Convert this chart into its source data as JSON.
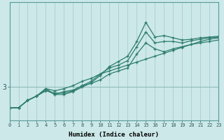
{
  "xlabel": "Humidex (Indice chaleur)",
  "ylabel": "",
  "background_color": "#cce8e8",
  "grid_color": "#aacece",
  "line_color": "#2e7d6e",
  "x_min": 0,
  "x_max": 23,
  "y_min": 2.55,
  "y_max": 4.15,
  "yticks": [
    3
  ],
  "xticks": [
    0,
    1,
    2,
    3,
    4,
    5,
    6,
    7,
    8,
    9,
    10,
    11,
    12,
    13,
    14,
    15,
    16,
    17,
    18,
    19,
    20,
    21,
    22,
    23
  ],
  "series": [
    {
      "x": [
        0,
        1,
        2,
        3,
        4,
        5,
        6,
        7,
        8,
        9,
        10,
        11,
        12,
        13,
        14,
        15,
        16,
        17,
        18,
        19,
        20,
        21,
        22,
        23
      ],
      "y": [
        2.72,
        2.72,
        2.82,
        2.88,
        2.98,
        2.95,
        2.98,
        3.02,
        3.08,
        3.12,
        3.18,
        3.22,
        3.26,
        3.3,
        3.34,
        3.38,
        3.42,
        3.46,
        3.5,
        3.54,
        3.58,
        3.62,
        3.65,
        3.67
      ]
    },
    {
      "x": [
        0,
        1,
        2,
        3,
        4,
        5,
        6,
        7,
        8,
        9,
        10,
        11,
        12,
        13,
        14,
        15,
        16,
        17,
        18,
        19,
        20,
        21,
        22,
        23
      ],
      "y": [
        2.72,
        2.72,
        2.82,
        2.88,
        2.95,
        2.92,
        2.92,
        2.95,
        3.02,
        3.05,
        3.1,
        3.18,
        3.22,
        3.26,
        3.45,
        3.6,
        3.52,
        3.48,
        3.52,
        3.55,
        3.58,
        3.6,
        3.62,
        3.64
      ]
    },
    {
      "x": [
        0,
        1,
        2,
        3,
        4,
        5,
        6,
        7,
        8,
        9,
        10,
        11,
        12,
        13,
        14,
        15,
        16,
        17,
        18,
        19,
        20,
        21,
        22,
        23
      ],
      "y": [
        2.72,
        2.72,
        2.82,
        2.88,
        2.96,
        2.9,
        2.94,
        2.96,
        3.02,
        3.08,
        3.18,
        3.26,
        3.3,
        3.36,
        3.55,
        3.75,
        3.6,
        3.62,
        3.62,
        3.6,
        3.63,
        3.65,
        3.67,
        3.68
      ]
    },
    {
      "x": [
        0,
        1,
        2,
        3,
        4,
        5,
        6,
        7,
        8,
        9,
        10,
        11,
        12,
        13,
        14,
        15,
        16,
        17,
        18,
        19,
        20,
        21,
        22,
        23
      ],
      "y": [
        2.72,
        2.72,
        2.82,
        2.88,
        2.98,
        2.9,
        2.9,
        2.94,
        3.0,
        3.06,
        3.16,
        3.28,
        3.35,
        3.42,
        3.62,
        3.88,
        3.68,
        3.7,
        3.67,
        3.64,
        3.65,
        3.67,
        3.68,
        3.69
      ]
    }
  ]
}
